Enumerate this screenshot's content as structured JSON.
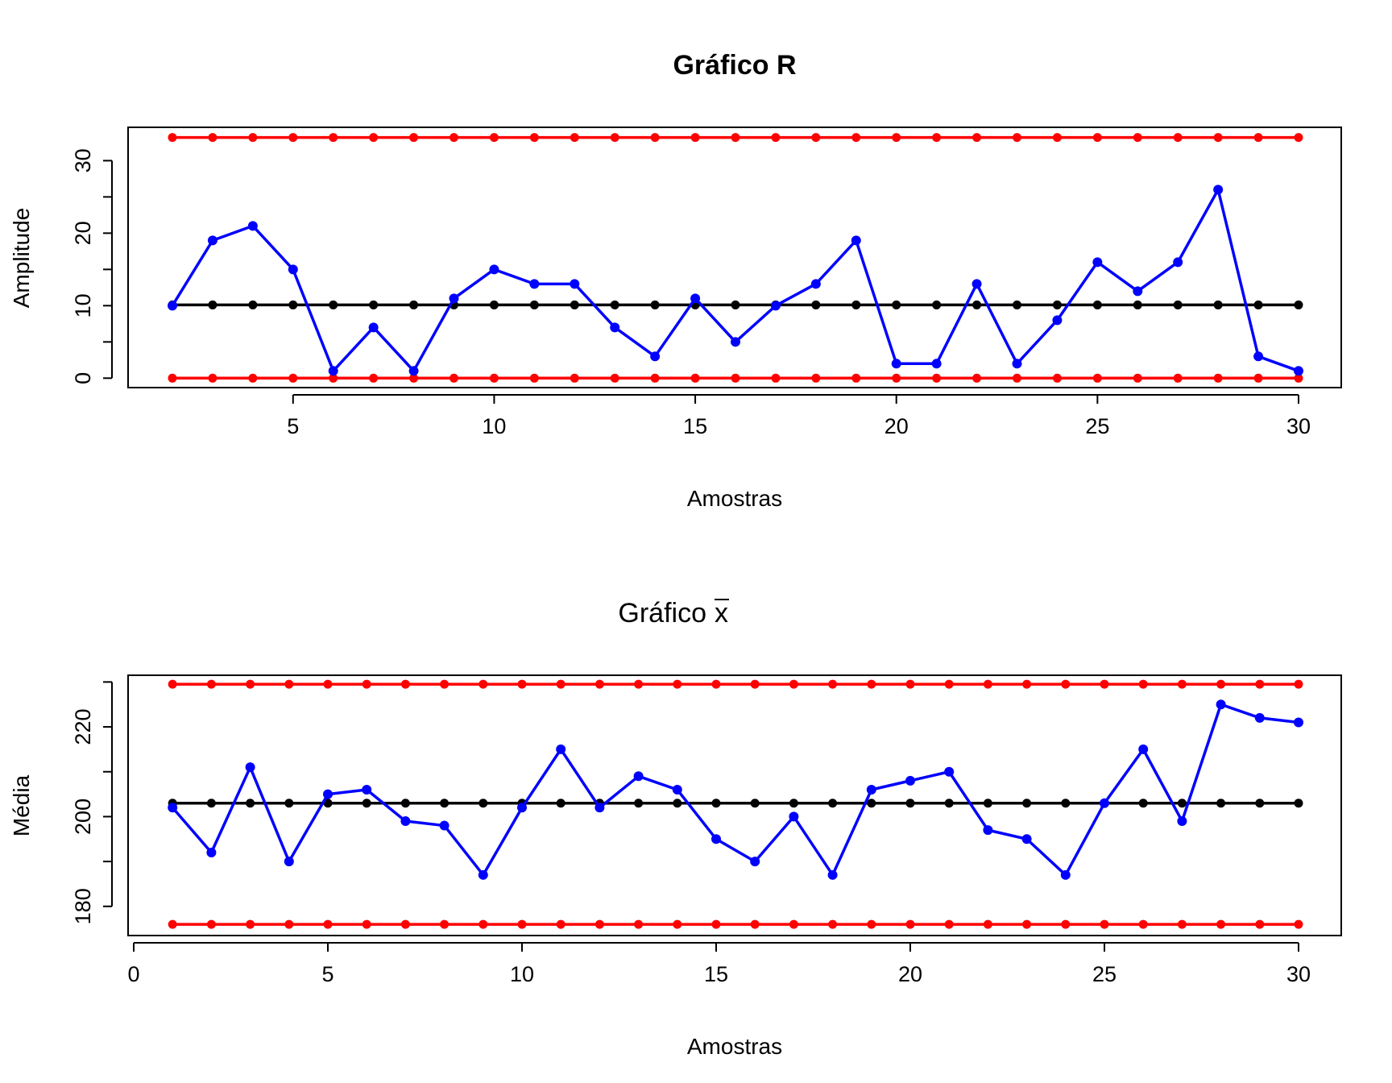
{
  "chart_data": [
    {
      "type": "line",
      "title": "Gráfico R",
      "xlabel": "Amostras",
      "ylabel": "Amplitude",
      "xlim": [
        2,
        30
      ],
      "ylim": [
        -1.3,
        34.6
      ],
      "x_ticks": [
        5,
        10,
        15,
        20,
        25,
        30
      ],
      "y_ticks": [
        0,
        10,
        20,
        30
      ],
      "x": [
        2,
        3,
        4,
        5,
        6,
        7,
        8,
        9,
        10,
        11,
        12,
        13,
        14,
        15,
        16,
        17,
        18,
        19,
        20,
        21,
        22,
        23,
        24,
        25,
        26,
        27,
        28,
        29,
        30
      ],
      "series": [
        {
          "role": "data",
          "color": "#0000FF",
          "values": [
            10,
            19,
            21,
            15,
            1,
            7,
            1,
            11,
            15,
            13,
            13,
            7,
            3,
            11,
            5,
            10,
            13,
            19,
            2,
            2,
            13,
            2,
            8,
            16,
            12,
            16,
            26,
            3,
            1
          ]
        },
        {
          "role": "center",
          "color": "#000000",
          "constant": 10.1
        },
        {
          "role": "upper-limit",
          "color": "#FF0000",
          "constant": 33.2
        },
        {
          "role": "lower-limit",
          "color": "#FF0000",
          "constant": 0
        }
      ],
      "grid": false
    },
    {
      "type": "line",
      "title_main": "Gráfico",
      "title_symbol": "x",
      "xlabel": "Amostras",
      "ylabel": "Média",
      "xlim": [
        0,
        30
      ],
      "ylim": [
        173.5,
        231.5
      ],
      "x_ticks": [
        0,
        5,
        10,
        15,
        20,
        25,
        30
      ],
      "y_ticks": [
        180,
        200,
        220
      ],
      "x": [
        1,
        2,
        3,
        4,
        5,
        6,
        7,
        8,
        9,
        10,
        11,
        12,
        13,
        14,
        15,
        16,
        17,
        18,
        19,
        20,
        21,
        22,
        23,
        24,
        25,
        26,
        27,
        28,
        29,
        30
      ],
      "series": [
        {
          "role": "data",
          "color": "#0000FF",
          "values": [
            202,
            192,
            211,
            190,
            205,
            206,
            199,
            198,
            187,
            202,
            215,
            202,
            209,
            206,
            195,
            190,
            200,
            187,
            206,
            208,
            210,
            197,
            195,
            187,
            203,
            215,
            199,
            225,
            222,
            221
          ]
        },
        {
          "role": "center",
          "color": "#000000",
          "constant": 203
        },
        {
          "role": "upper-limit",
          "color": "#FF0000",
          "constant": 229.5
        },
        {
          "role": "lower-limit",
          "color": "#FF0000",
          "constant": 176
        }
      ],
      "grid": false
    }
  ]
}
